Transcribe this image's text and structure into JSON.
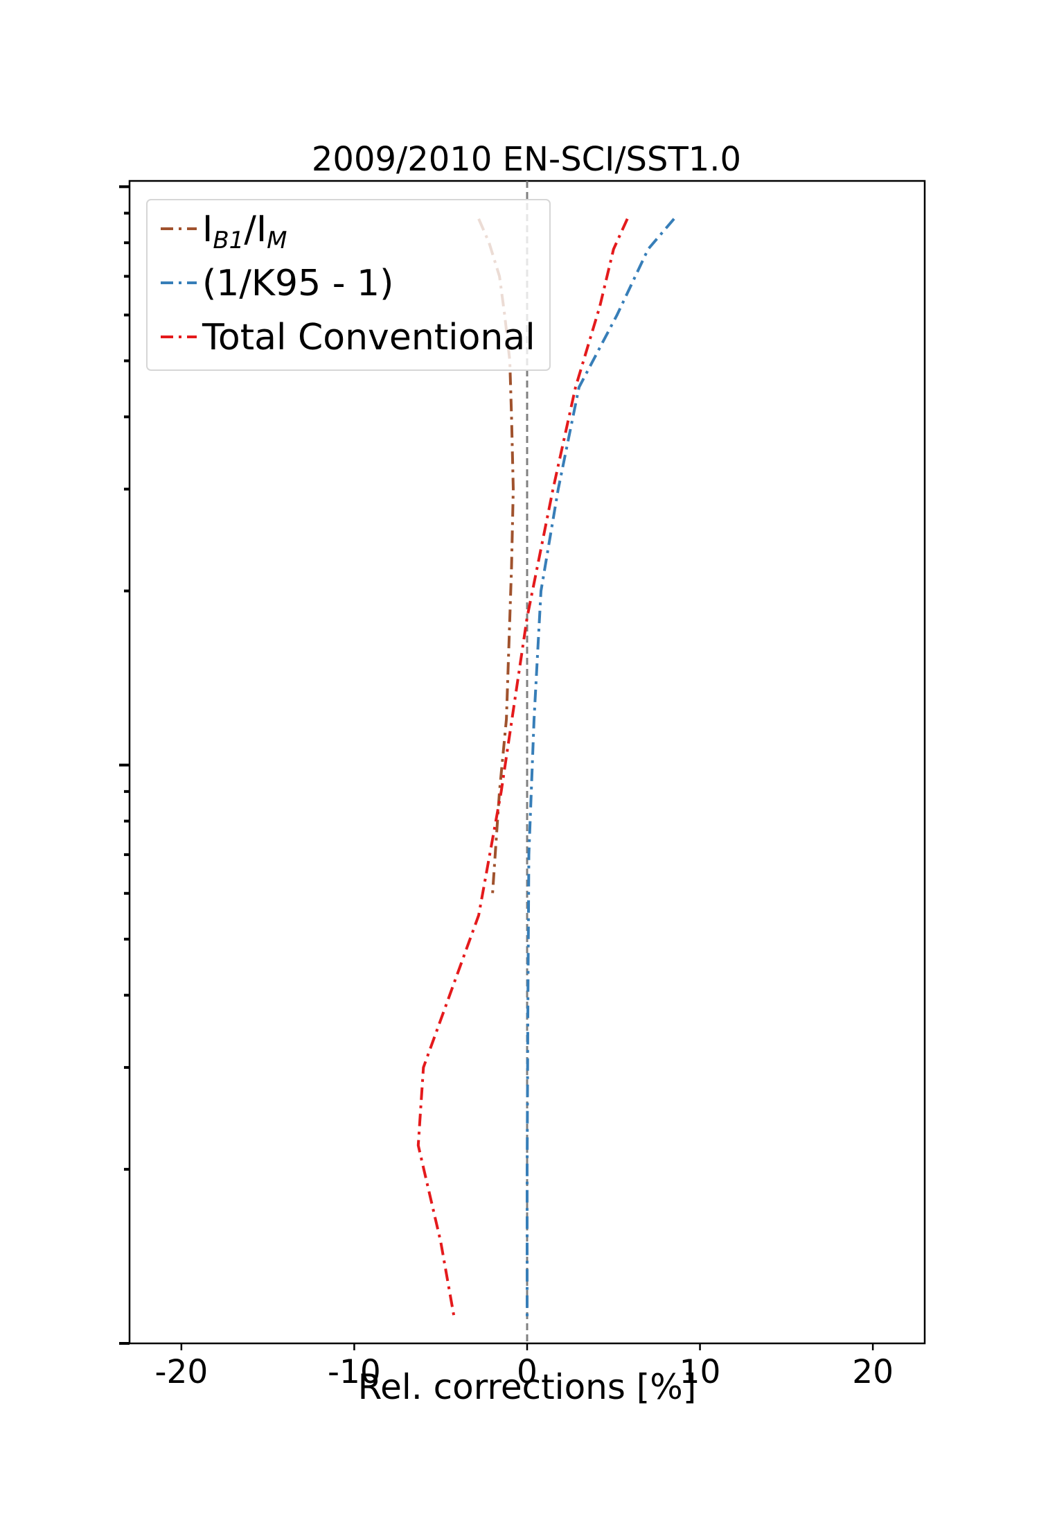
{
  "chart_data": {
    "type": "line",
    "title": "2009/2010 EN-SCI/SST1.0",
    "xlabel": "Rel. corrections [%]",
    "ylabel": "",
    "xlim": [
      -23,
      23
    ],
    "x_ticks": [
      "-20",
      "-10",
      "0",
      "10",
      "20"
    ],
    "x_tick_values": [
      -20,
      -10,
      0,
      10,
      20
    ],
    "y_scale": "log",
    "y_tick_labels_visible": false,
    "grid": false,
    "reference_line": {
      "x": 0,
      "color": "#808080",
      "style": "dashed"
    },
    "legend": {
      "placement": "top-left",
      "entries": [
        {
          "label_main": "I",
          "label_sub1": "B1",
          "label_mid": "/I",
          "label_sub2": "M"
        },
        {
          "label": "(1/K95 - 1)"
        },
        {
          "label": "Total Conventional"
        }
      ]
    },
    "series": [
      {
        "label_ref": "I_B1/I_M",
        "color": "#a0522d",
        "points": [
          {
            "x": -2.8,
            "y": 0.88
          },
          {
            "x": -2.2,
            "y": 0.8
          },
          {
            "x": -1.6,
            "y": 0.7
          },
          {
            "x": -1.3,
            "y": 0.6
          },
          {
            "x": -1.0,
            "y": 0.5
          },
          {
            "x": -0.9,
            "y": 0.4
          },
          {
            "x": -0.8,
            "y": 0.3
          },
          {
            "x": -0.9,
            "y": 0.22
          },
          {
            "x": -1.2,
            "y": 0.12
          },
          {
            "x": -1.6,
            "y": 0.09
          },
          {
            "x": -2.0,
            "y": 0.06
          }
        ]
      },
      {
        "label_ref": "(1/K95 - 1)",
        "color": "#377eb8",
        "points": [
          {
            "x": 8.5,
            "y": 0.88
          },
          {
            "x": 7.0,
            "y": 0.78
          },
          {
            "x": 5.2,
            "y": 0.6
          },
          {
            "x": 3.0,
            "y": 0.45
          },
          {
            "x": 1.8,
            "y": 0.3
          },
          {
            "x": 0.8,
            "y": 0.2
          },
          {
            "x": 0.4,
            "y": 0.12
          },
          {
            "x": 0.1,
            "y": 0.07
          },
          {
            "x": 0.05,
            "y": 0.04
          },
          {
            "x": 0.0,
            "y": 0.02
          },
          {
            "x": 0.0,
            "y": 0.011
          }
        ]
      },
      {
        "label_ref": "Total Conventional",
        "color": "#e41a1c",
        "points": [
          {
            "x": 5.8,
            "y": 0.88
          },
          {
            "x": 5.0,
            "y": 0.78
          },
          {
            "x": 4.2,
            "y": 0.62
          },
          {
            "x": 2.8,
            "y": 0.45
          },
          {
            "x": 1.5,
            "y": 0.3
          },
          {
            "x": 0.0,
            "y": 0.18
          },
          {
            "x": -1.5,
            "y": 0.09
          },
          {
            "x": -2.8,
            "y": 0.055
          },
          {
            "x": -6.0,
            "y": 0.03
          },
          {
            "x": -6.3,
            "y": 0.022
          },
          {
            "x": -5.0,
            "y": 0.015
          },
          {
            "x": -4.2,
            "y": 0.011
          }
        ]
      }
    ]
  }
}
